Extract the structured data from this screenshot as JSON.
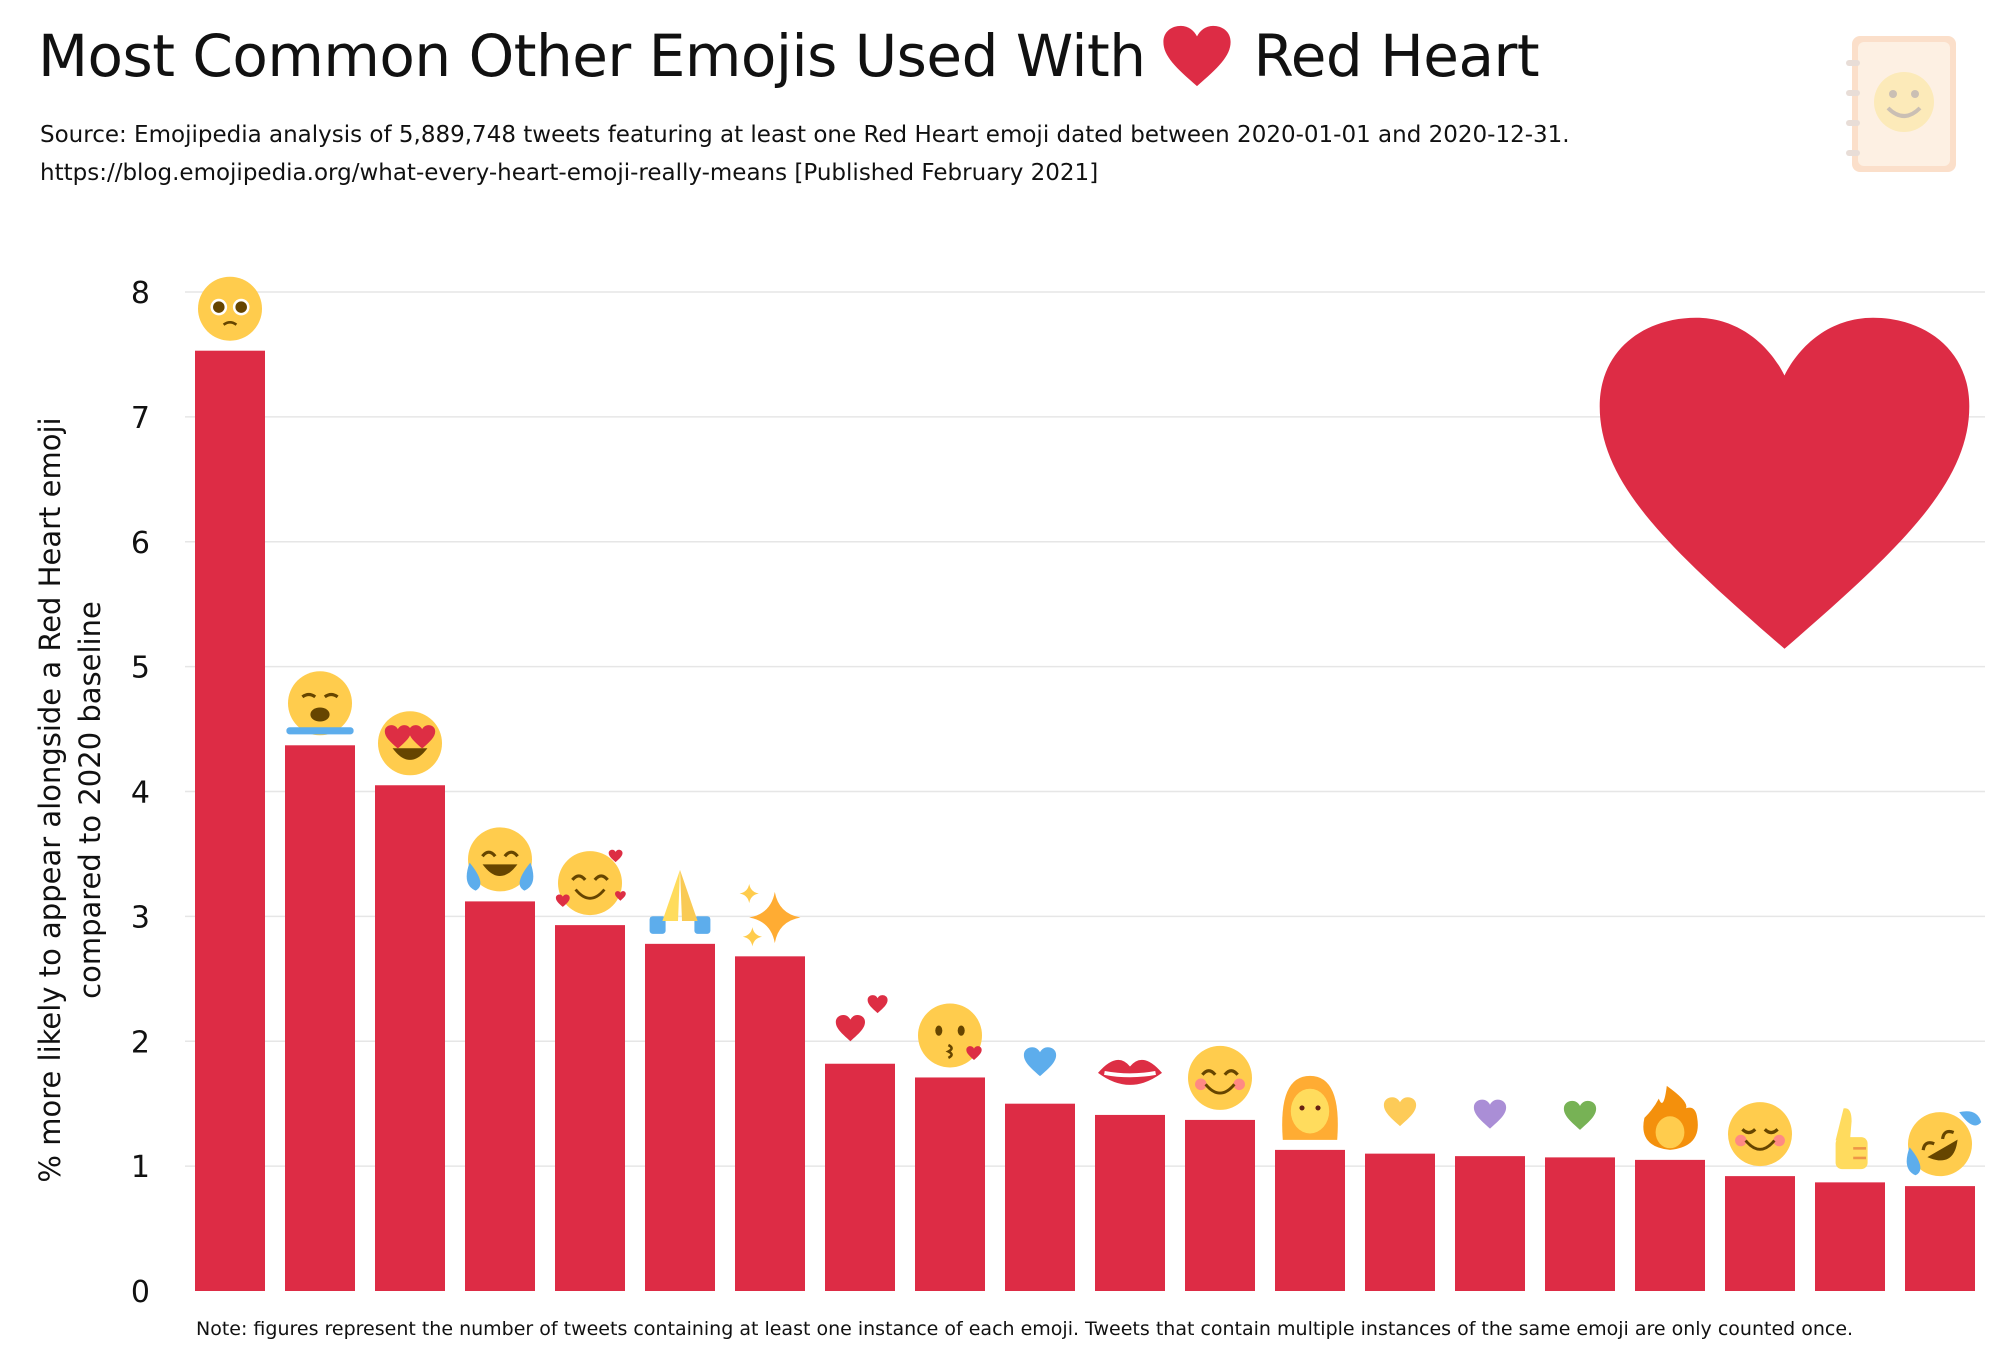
{
  "title": {
    "text_before": "Most Common Other Emojis Used With",
    "text_after": "Red Heart",
    "icon": "red-heart-icon"
  },
  "subtitle": {
    "line1": "Source: Emojipedia analysis of 5,889,748 tweets featuring at least one Red Heart emoji dated between 2020-01-01 and 2020-12-31.",
    "line2": "https://blog.emojipedia.org/what-every-heart-emoji-really-means [Published February 2021]"
  },
  "note": "Note: figures represent the number of tweets containing at least one instance of each emoji. Tweets that contain multiple instances of the same emoji are only counted once.",
  "colors": {
    "bar": "#dd2c45",
    "grid": "#e6e6e6",
    "heart": "#dd2c45"
  },
  "chart_data": {
    "type": "bar",
    "ylabel": [
      "% more likely to appear alongside a Red Heart emoji",
      "compared to 2020 baseline"
    ],
    "ylim": [
      0,
      8
    ],
    "yticks": [
      "0",
      "1",
      "2",
      "3",
      "4",
      "5",
      "6",
      "7",
      "8"
    ],
    "grid": true,
    "categories": [
      "pleading-face-emoji",
      "loudly-crying-face-emoji",
      "smiling-face-with-heart-eyes-emoji",
      "face-with-tears-of-joy-emoji",
      "smiling-face-with-hearts-emoji",
      "folded-hands-emoji",
      "sparkles-emoji",
      "two-hearts-emoji",
      "face-blowing-a-kiss-emoji",
      "blue-heart-emoji",
      "kiss-mark-emoji",
      "smiling-face-with-smiling-eyes-emoji",
      "woman-emoji",
      "yellow-heart-emoji",
      "purple-heart-emoji",
      "green-heart-emoji",
      "fire-emoji",
      "smiling-face-emoji",
      "thumbs-up-emoji",
      "rolling-on-the-floor-laughing-emoji"
    ],
    "values": [
      7.53,
      4.37,
      4.05,
      3.12,
      2.93,
      2.78,
      2.68,
      1.82,
      1.71,
      1.5,
      1.41,
      1.37,
      1.13,
      1.1,
      1.08,
      1.07,
      1.05,
      0.92,
      0.87,
      0.84
    ]
  }
}
